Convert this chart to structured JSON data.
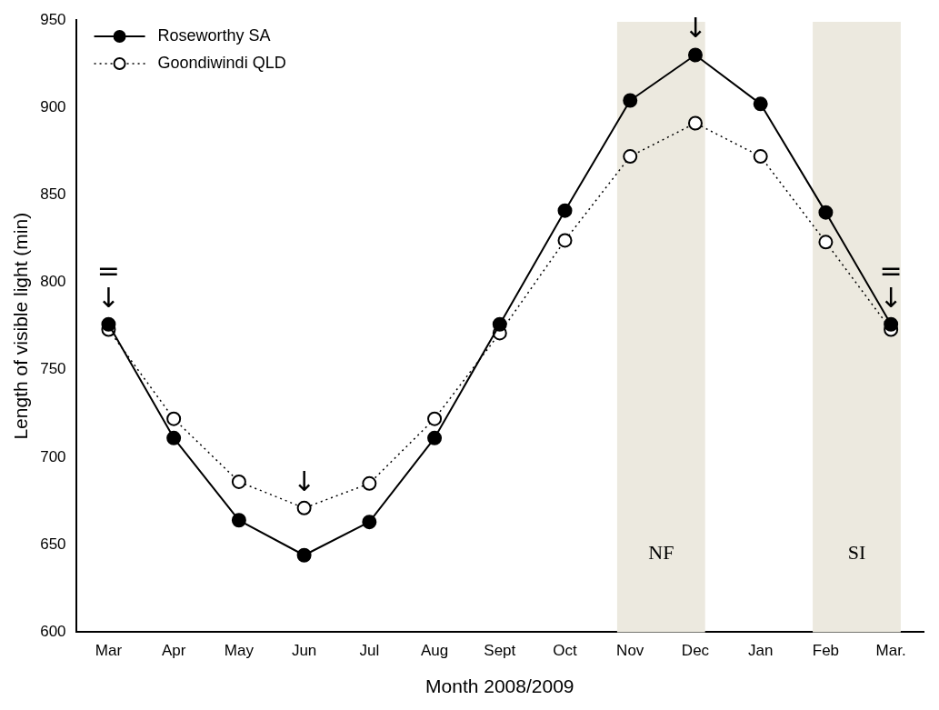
{
  "chart_data": {
    "type": "line",
    "xlabel": "Month 2008/2009",
    "ylabel": "Length of visible light (min)",
    "categories": [
      "Mar",
      "Apr",
      "May",
      "Jun",
      "Jul",
      "Aug",
      "Sept",
      "Oct",
      "Nov",
      "Dec",
      "Jan",
      "Feb",
      "Mar."
    ],
    "series": [
      {
        "name": "Roseworthy SA",
        "color": "#000000",
        "line_style": "solid",
        "values": [
          776,
          711,
          664,
          644,
          663,
          711,
          776,
          841,
          904,
          930,
          902,
          840,
          776
        ]
      },
      {
        "name": "Goondiwindi QLD",
        "color": "#000000",
        "line_style": "dotted",
        "values": [
          773,
          722,
          686,
          671,
          685,
          722,
          771,
          824,
          872,
          891,
          872,
          823,
          773
        ]
      }
    ],
    "ylim": [
      600,
      950
    ],
    "yticks": [
      600,
      650,
      700,
      750,
      800,
      850,
      900,
      950
    ],
    "grid": false,
    "marker": "circle",
    "legend": "top left",
    "bands": [
      {
        "axis": "x",
        "from": "Nov",
        "to": "Dec",
        "label": "NF",
        "color": "#ece9df"
      },
      {
        "axis": "x",
        "from": "Feb",
        "to": "Mar.",
        "label": "SI",
        "color": "#ece9df"
      }
    ],
    "annotations": [
      {
        "text": "↓",
        "x": "Mar",
        "y": 776
      },
      {
        "text": "=",
        "x": "Mar",
        "y": 776
      },
      {
        "text": "↓",
        "x": "Jun",
        "y": 671
      },
      {
        "text": "↓",
        "x": "Dec",
        "y": 930
      },
      {
        "text": "↓",
        "x": "Mar.",
        "y": 776
      },
      {
        "text": "=",
        "x": "Mar.",
        "y": 776
      }
    ]
  }
}
